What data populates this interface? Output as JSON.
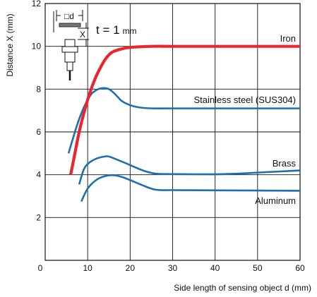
{
  "chart_data": {
    "type": "line",
    "title": "",
    "xlabel": "Side length of sensing object d (mm)",
    "ylabel": "Distance X (mm)",
    "xlim": [
      0,
      60
    ],
    "ylim": [
      0,
      12
    ],
    "x_ticks": [
      0,
      10,
      20,
      30,
      40,
      50,
      60
    ],
    "y_ticks": [
      2,
      4,
      6,
      8,
      10,
      12
    ],
    "grid": true,
    "legend": "inline labels",
    "annotation": {
      "text_main": "t = 1",
      "text_unit": "mm",
      "diagram_d": "□d",
      "diagram_x": "X"
    },
    "series": [
      {
        "name": "Iron",
        "color": "#e8262d",
        "points": [
          [
            6,
            4.0
          ],
          [
            7,
            5.0
          ],
          [
            8,
            6.0
          ],
          [
            9,
            6.8
          ],
          [
            10,
            7.5
          ],
          [
            11,
            8.1
          ],
          [
            12,
            8.6
          ],
          [
            13,
            9.0
          ],
          [
            14,
            9.35
          ],
          [
            15,
            9.6
          ],
          [
            16,
            9.75
          ],
          [
            18,
            9.88
          ],
          [
            20,
            9.95
          ],
          [
            25,
            10.0
          ],
          [
            30,
            10.0
          ],
          [
            40,
            10.0
          ],
          [
            50,
            10.0
          ],
          [
            60,
            10.0
          ]
        ]
      },
      {
        "name": "Stainless steel (SUS304)",
        "color": "#1e6fae",
        "points": [
          [
            5.5,
            5.0
          ],
          [
            7,
            6.0
          ],
          [
            8,
            6.6
          ],
          [
            9,
            7.1
          ],
          [
            10,
            7.5
          ],
          [
            11,
            7.8
          ],
          [
            12,
            7.95
          ],
          [
            13,
            8.03
          ],
          [
            14,
            8.05
          ],
          [
            15,
            8.0
          ],
          [
            16,
            7.85
          ],
          [
            17,
            7.65
          ],
          [
            18,
            7.45
          ],
          [
            20,
            7.25
          ],
          [
            22,
            7.15
          ],
          [
            25,
            7.1
          ],
          [
            30,
            7.1
          ],
          [
            40,
            7.1
          ],
          [
            50,
            7.1
          ],
          [
            60,
            7.1
          ]
        ]
      },
      {
        "name": "Brass",
        "color": "#1e6fae",
        "points": [
          [
            8,
            3.55
          ],
          [
            9,
            4.2
          ],
          [
            10,
            4.5
          ],
          [
            12,
            4.75
          ],
          [
            14,
            4.85
          ],
          [
            15,
            4.85
          ],
          [
            17,
            4.7
          ],
          [
            20,
            4.45
          ],
          [
            23,
            4.2
          ],
          [
            26,
            4.05
          ],
          [
            30,
            4.03
          ],
          [
            40,
            4.02
          ],
          [
            45,
            4.05
          ],
          [
            50,
            4.1
          ],
          [
            55,
            4.15
          ],
          [
            60,
            4.2
          ]
        ]
      },
      {
        "name": "Aluminum",
        "color": "#1e6fae",
        "points": [
          [
            8.5,
            2.75
          ],
          [
            10,
            3.35
          ],
          [
            12,
            3.75
          ],
          [
            14,
            3.93
          ],
          [
            16,
            3.98
          ],
          [
            18,
            3.9
          ],
          [
            20,
            3.75
          ],
          [
            23,
            3.5
          ],
          [
            26,
            3.3
          ],
          [
            30,
            3.28
          ],
          [
            40,
            3.27
          ],
          [
            50,
            3.26
          ],
          [
            60,
            3.25
          ]
        ]
      }
    ]
  }
}
